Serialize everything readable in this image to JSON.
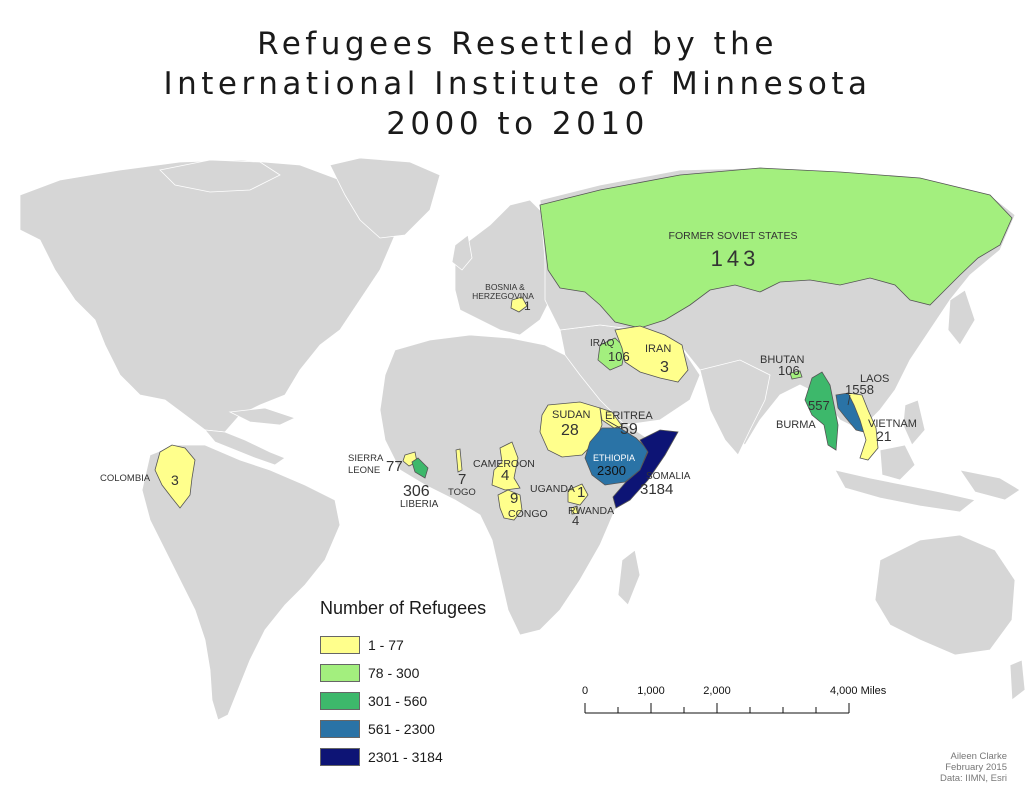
{
  "title": {
    "line1": "Refugees Resettled by the",
    "line2": "International Institute of Minnesota",
    "line3": "2000 to 2010"
  },
  "legend": {
    "title": "Number of Refugees",
    "classes": [
      {
        "label": "1 - 77",
        "color": "#ffff8c"
      },
      {
        "label": "78 - 300",
        "color": "#a3ef7e"
      },
      {
        "label": "301 - 560",
        "color": "#3db86b"
      },
      {
        "label": "561 - 2300",
        "color": "#2a73a6"
      },
      {
        "label": "2301 - 3184",
        "color": "#0d1475"
      }
    ]
  },
  "colors": {
    "land": "#d6d6d6",
    "land_border": "#ffffff",
    "water": "#ffffff"
  },
  "regions": [
    {
      "name": "FORMER SOVIET STATES",
      "value": "143",
      "class": 1
    },
    {
      "name": "BOSNIA & HERZEGOVINA",
      "value": "1",
      "class": 0
    },
    {
      "name": "IRAQ",
      "value": "106",
      "class": 1
    },
    {
      "name": "IRAN",
      "value": "3",
      "class": 0
    },
    {
      "name": "BHUTAN",
      "value": "106",
      "class": 1
    },
    {
      "name": "LAOS",
      "value": "1558",
      "class": 3
    },
    {
      "name": "BURMA",
      "value": "557",
      "class": 2
    },
    {
      "name": "VIETNAM",
      "value": "21",
      "class": 0
    },
    {
      "name": "SUDAN",
      "value": "28",
      "class": 0
    },
    {
      "name": "ERITREA",
      "value": "59",
      "class": 0
    },
    {
      "name": "ETHIOPIA",
      "value": "2300",
      "class": 3
    },
    {
      "name": "SOMALIA",
      "value": "3184",
      "class": 4
    },
    {
      "name": "SIERRA LEONE",
      "value": "77",
      "class": 0
    },
    {
      "name": "LIBERIA",
      "value": "306",
      "class": 2
    },
    {
      "name": "TOGO",
      "value": "7",
      "class": 0
    },
    {
      "name": "CAMEROON",
      "value": "4",
      "class": 0
    },
    {
      "name": "UGANDA",
      "value": "1",
      "class": 0
    },
    {
      "name": "RWANDA",
      "value": "4",
      "class": 0
    },
    {
      "name": "CONGO",
      "value": "9",
      "class": 0
    },
    {
      "name": "COLOMBIA",
      "value": "3",
      "class": 0
    }
  ],
  "scalebar": {
    "ticks": [
      "0",
      "1,000",
      "2,000",
      "4,000 Miles"
    ]
  },
  "credits": {
    "author": "Aileen Clarke",
    "date": "February 2015",
    "source": "Data: IIMN, Esri"
  }
}
